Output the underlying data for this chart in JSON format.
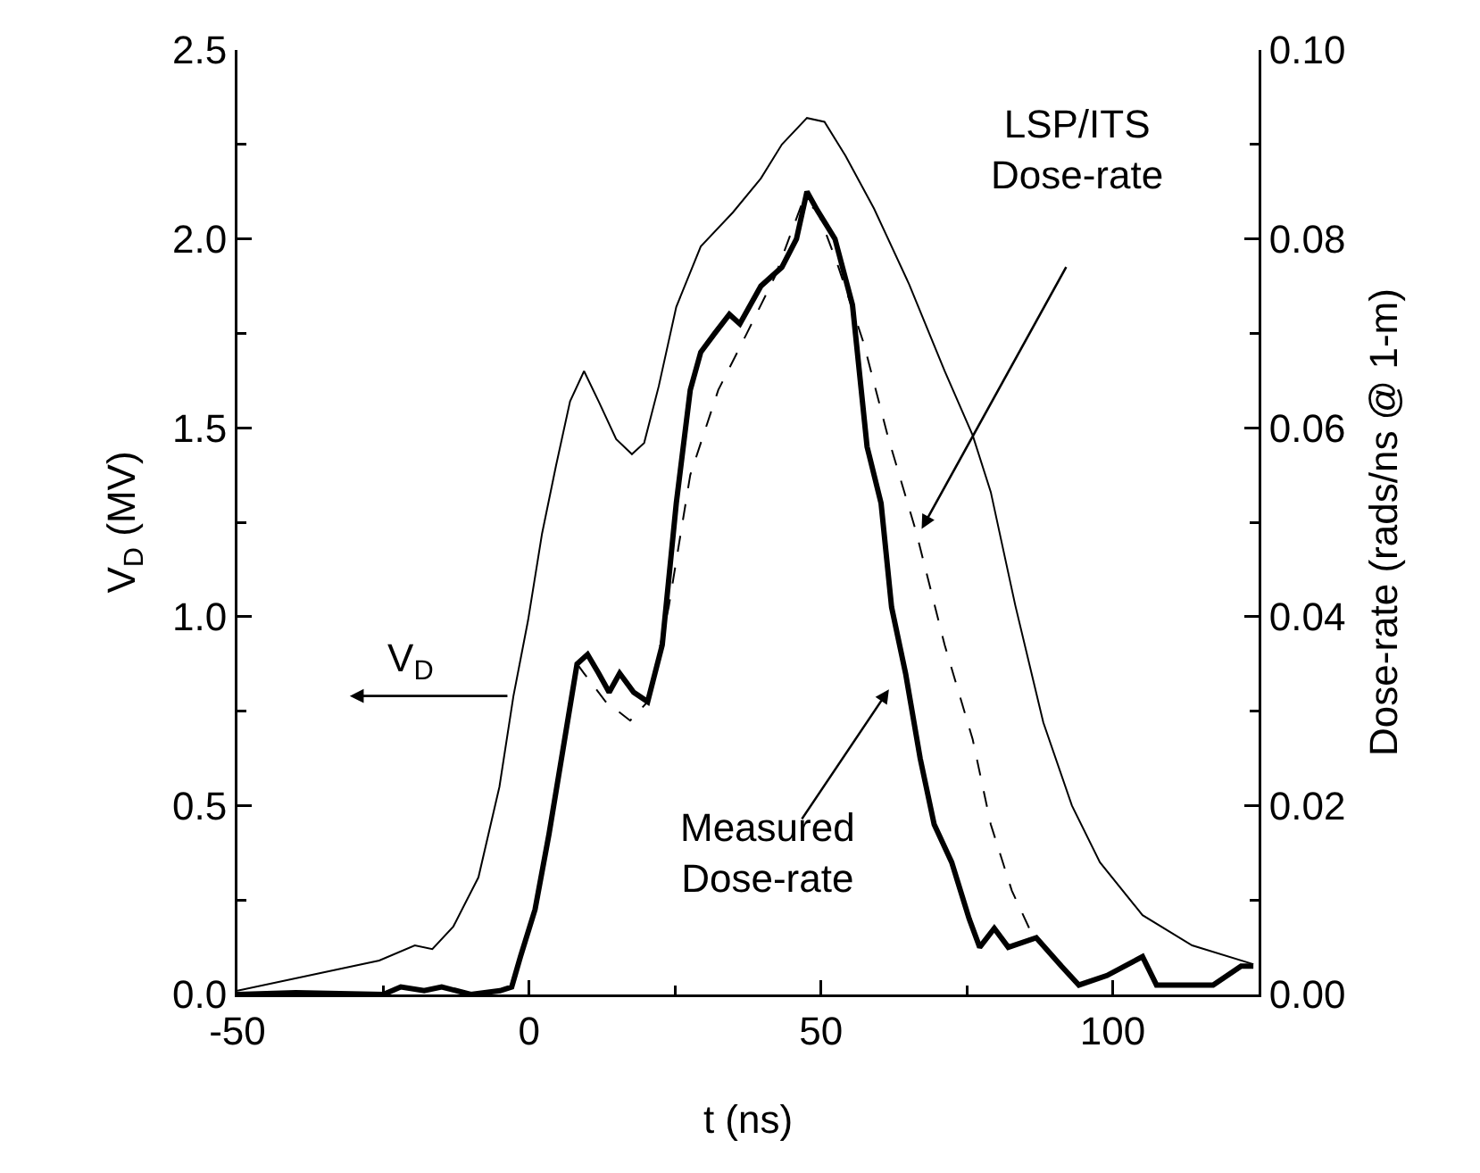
{
  "chart_data": {
    "type": "line",
    "xlabel": "t (ns)",
    "ylabel": "V$_{D}$ (MV)",
    "y2label": "Dose-rate (rads/ns @ 1-m)",
    "xlim": [
      -50,
      125
    ],
    "xticks": [
      -50,
      0,
      50,
      100
    ],
    "ylim": [
      0,
      2.5
    ],
    "yticks": [
      {
        "value": 0,
        "label": "0.0"
      },
      0.5,
      {
        "value": 1,
        "label": "1.0"
      },
      1.5,
      {
        "value": 2,
        "label": "2.0"
      },
      2.5
    ],
    "y2lim": [
      0,
      0.1
    ],
    "y2ticks": [
      {
        "value": 0,
        "label": "0.00"
      },
      0.02,
      0.04,
      0.06,
      0.08,
      {
        "value": 0.1,
        "label": "0.10"
      }
    ],
    "grid": false,
    "marker": "none",
    "series": [
      {
        "color": "#000000",
        "line_style": "solid",
        "x": [
          -50,
          -25.7,
          -19.6,
          -16.6,
          -13,
          -8.7,
          -5.1,
          -2.7,
          -0.2,
          2.2,
          4.6,
          7.0,
          9.4,
          11.9,
          14.9,
          17.6,
          19.7,
          22.2,
          25.2,
          29.4,
          34.9,
          39.7,
          43.3,
          47.6,
          50.6,
          54.2,
          59.1,
          65.1,
          71.2,
          76.0,
          79.1,
          83.3,
          88.1,
          93.0,
          97.8,
          105.1,
          113.6,
          124.1
        ],
        "values": [
          0.01,
          0.09,
          0.13,
          0.12,
          0.18,
          0.31,
          0.55,
          0.79,
          0.99,
          1.22,
          1.4,
          1.57,
          1.65,
          1.57,
          1.47,
          1.43,
          1.46,
          1.61,
          1.82,
          1.98,
          2.07,
          2.16,
          2.25,
          2.32,
          2.31,
          2.22,
          2.08,
          1.88,
          1.65,
          1.48,
          1.33,
          1.03,
          0.72,
          0.5,
          0.35,
          0.21,
          0.13,
          0.08
        ]
      },
      {
        "color": "#000000",
        "line_style": "solid",
        "axis": "y2",
        "x": [
          -50,
          -40,
          -25,
          -22,
          -18,
          -15,
          -10,
          -5,
          -3,
          -1.5,
          1.0,
          3.4,
          5.8,
          8.2,
          10,
          11.9,
          13.7,
          15.5,
          17.9,
          20.3,
          22.8,
          25.2,
          27.6,
          29.4,
          31.8,
          34.3,
          36.1,
          39.7,
          43.3,
          45.8,
          47.6,
          49.4,
          52.4,
          55.4,
          57.9,
          60.3,
          62.1,
          64.5,
          67,
          69.4,
          72.4,
          75.4,
          77.2,
          79.7,
          82.1,
          86.9,
          91.2,
          94.2,
          99,
          105.1,
          107.5,
          112.3,
          117.2,
          122,
          124.1
        ],
        "values": [
          0,
          0.0002,
          0,
          0.0008,
          0.0004,
          0.0008,
          0,
          0.0004,
          0.0008,
          0.004,
          0.009,
          0.017,
          0.026,
          0.035,
          0.036,
          0.034,
          0.032,
          0.034,
          0.032,
          0.031,
          0.037,
          0.052,
          0.064,
          0.068,
          0.07,
          0.072,
          0.071,
          0.075,
          0.077,
          0.08,
          0.085,
          0.083,
          0.08,
          0.073,
          0.058,
          0.052,
          0.041,
          0.034,
          0.025,
          0.018,
          0.014,
          0.008,
          0.005,
          0.007,
          0.005,
          0.006,
          0.003,
          0.001,
          0.002,
          0.004,
          0.001,
          0.001,
          0.001,
          0.003,
          0.003
        ]
      },
      {
        "color": "#000000",
        "line_style": "dashed",
        "axis": "y2",
        "x": [
          8.2,
          9.4,
          13.1,
          17.3,
          20.3,
          23.9,
          27.6,
          32.4,
          37.3,
          42.1,
          46.9,
          49.4,
          53.0,
          57.3,
          61.5,
          66.3,
          71.2,
          76.0,
          79.1,
          82.7,
          85.7
        ],
        "values": [
          0.035,
          0.034,
          0.031,
          0.029,
          0.031,
          0.041,
          0.055,
          0.064,
          0.07,
          0.076,
          0.084,
          0.083,
          0.077,
          0.069,
          0.059,
          0.049,
          0.037,
          0.027,
          0.018,
          0.011,
          0.007
        ]
      }
    ],
    "annotations": [
      "LSP/ITS\nDose-rate",
      "Measured\nDose-rate",
      "V$_{D}$"
    ]
  }
}
